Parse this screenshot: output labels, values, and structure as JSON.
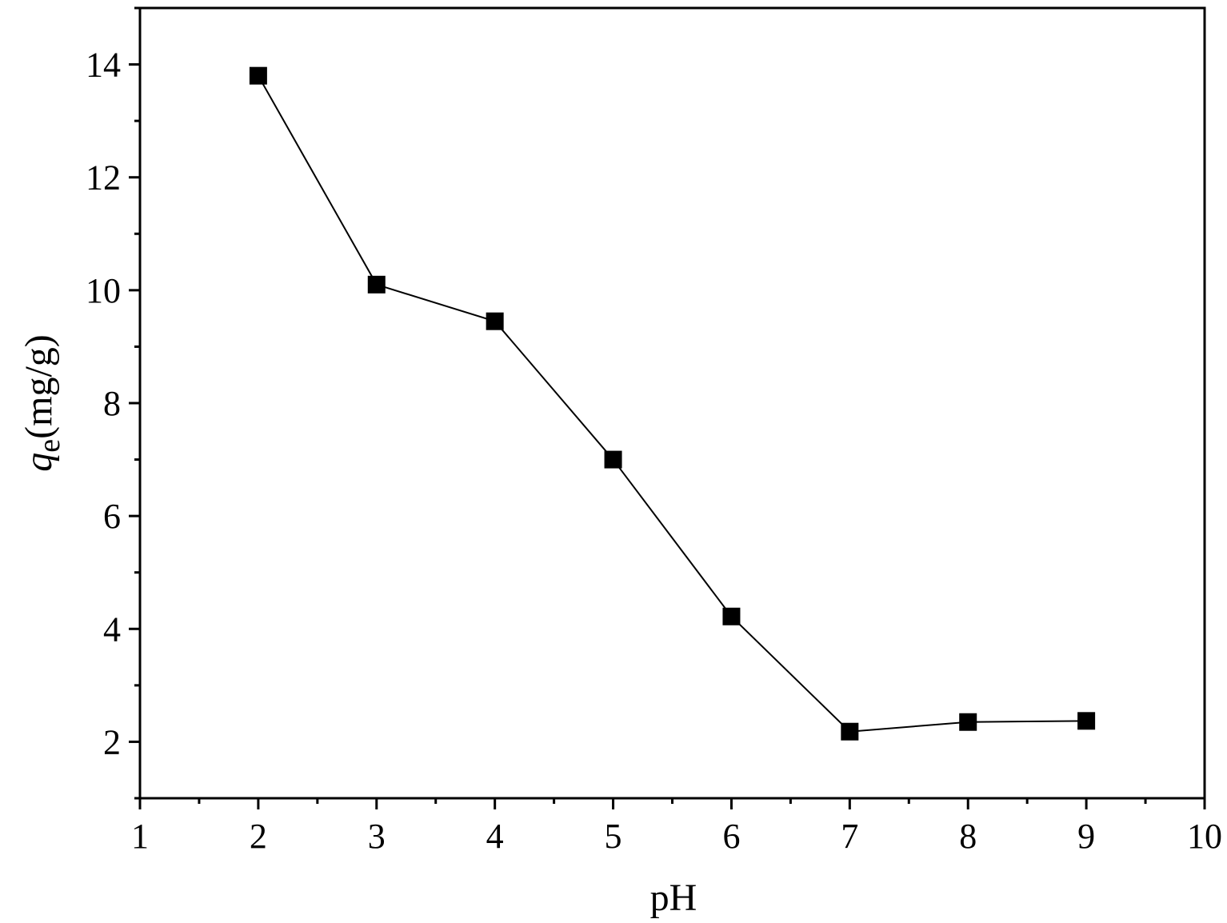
{
  "chart_data": {
    "type": "line",
    "title": "",
    "xlabel": "pH",
    "ylabel": {
      "symbol": "q",
      "subscript": "e",
      "unit": "(mg/g)"
    },
    "xlim": [
      1,
      10
    ],
    "ylim": [
      1,
      15
    ],
    "x_ticks": [
      1,
      2,
      3,
      4,
      5,
      6,
      7,
      8,
      9,
      10
    ],
    "y_ticks": [
      2,
      4,
      6,
      8,
      10,
      12,
      14
    ],
    "grid": false,
    "legend": "none",
    "marker": "square",
    "color": "#000000",
    "series": [
      {
        "x": [
          2,
          3,
          4,
          5,
          6,
          7,
          8,
          9
        ],
        "y": [
          13.8,
          10.1,
          9.45,
          7.0,
          4.22,
          2.18,
          2.35,
          2.37
        ]
      }
    ]
  }
}
